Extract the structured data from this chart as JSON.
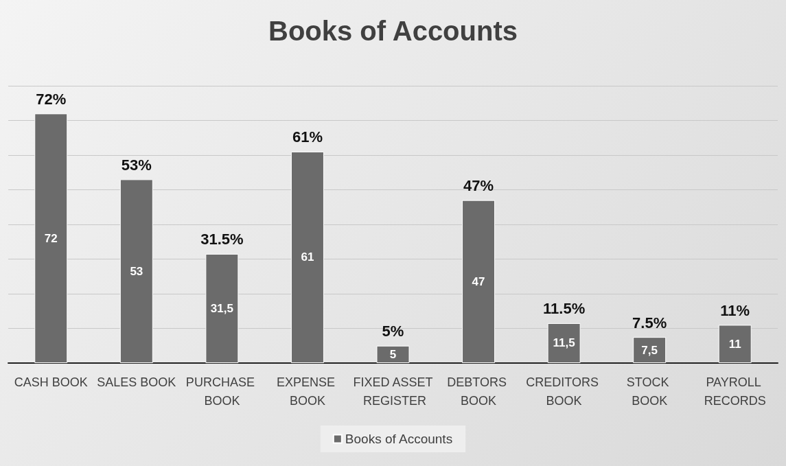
{
  "chart_data": {
    "type": "bar",
    "title": "Books of Accounts",
    "categories": [
      "CASH BOOK",
      "SALES BOOK",
      "PURCHASE BOOK",
      "EXPENSE BOOK",
      "FIXED ASSET REGISTER",
      "DEBTORS BOOK",
      "CREDITORS BOOK",
      "STOCK BOOK",
      "PAYROLL RECORDS"
    ],
    "series": [
      {
        "name": "Books of Accounts",
        "color": "#6b6b6b",
        "values": [
          72,
          53,
          31.5,
          61,
          5,
          47,
          11.5,
          7.5,
          11
        ],
        "value_labels": [
          "72",
          "53",
          "31,5",
          "61",
          "5",
          "47",
          "11,5",
          "7,5",
          "11"
        ]
      }
    ],
    "annotations": [
      {
        "text": "72%",
        "x": "CASH BOOK",
        "y": 72
      },
      {
        "text": "53%",
        "x": "SALES BOOK",
        "y": 53
      },
      {
        "text": "31.5%",
        "x": "PURCHASE BOOK",
        "y": 31.5
      },
      {
        "text": "61%",
        "x": "EXPENSE BOOK",
        "y": 61
      },
      {
        "text": "5%",
        "x": "FIXED ASSET REGISTER",
        "y": 5
      },
      {
        "text": "47%",
        "x": "DEBTORS BOOK",
        "y": 47
      },
      {
        "text": "11.5%",
        "x": "CREDITORS BOOK",
        "y": 11.5
      },
      {
        "text": "7.5%",
        "x": "STOCK BOOK",
        "y": 7.5
      },
      {
        "text": "11%",
        "x": "PAYROLL RECORDS",
        "y": 11
      }
    ],
    "ylim": [
      0,
      80
    ],
    "yticks": [
      0,
      10,
      20,
      30,
      40,
      50,
      60,
      70,
      80
    ],
    "tick_labels": "x",
    "grid": true,
    "legend": "bottom"
  }
}
